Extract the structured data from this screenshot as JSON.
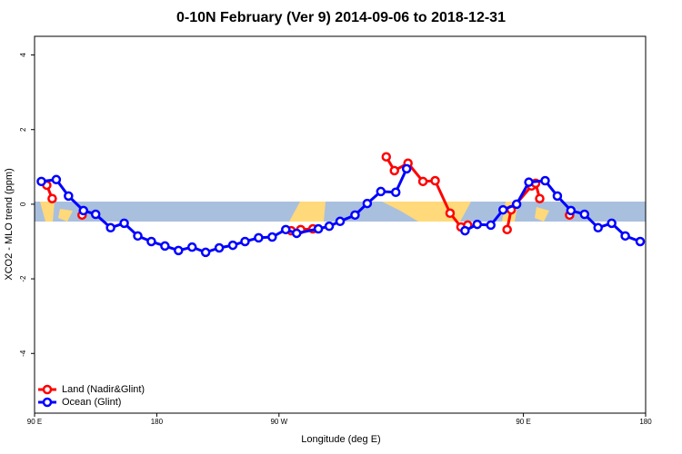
{
  "chart_data": {
    "type": "line",
    "title": "0-10N February (Ver 9)   2014-09-06 to 2018-12-31",
    "x_label": "Longitude (deg E)",
    "y_label": "XCO2 - MLO trend (ppm)",
    "xlim": [
      90,
      540
    ],
    "ylim": [
      -5.6,
      4.5
    ],
    "xticks": [
      {
        "value": 90,
        "label": "90 E"
      },
      {
        "value": 180,
        "label": "180"
      },
      {
        "value": 270,
        "label": "90 W"
      },
      {
        "value": 450,
        "label": "90 E"
      },
      {
        "value": 540,
        "label": "180"
      }
    ],
    "yticks": [
      -4,
      -2,
      0,
      2,
      4
    ],
    "legend": "bottom-left",
    "series": [
      {
        "name": "Land (Nadir&Glint)",
        "color": "#ff0000",
        "x": [
          99,
          103,
          null,
          125,
          null,
          279,
          286,
          295,
          null,
          349,
          355,
          365,
          376,
          385,
          396,
          404,
          409,
          null,
          438,
          441,
          456,
          459,
          462,
          null,
          484
        ],
        "values": [
          0.51,
          0.15,
          null,
          -0.29,
          null,
          -0.71,
          -0.68,
          -0.66,
          null,
          1.27,
          0.9,
          1.1,
          0.61,
          0.63,
          -0.24,
          -0.61,
          -0.56,
          null,
          -0.68,
          -0.15,
          0.49,
          0.56,
          0.15,
          null,
          -0.29
        ]
      },
      {
        "name": "Ocean (Glint)",
        "color": "#0000ff",
        "x": [
          95,
          106,
          115,
          126,
          135,
          146,
          156,
          166,
          176,
          186,
          196,
          206,
          216,
          226,
          236,
          245,
          255,
          265,
          275,
          283,
          299,
          307,
          315,
          326,
          335,
          345,
          356,
          364,
          null,
          407,
          416,
          426,
          435,
          445,
          454,
          466,
          475,
          485,
          495,
          505,
          515,
          525,
          536
        ],
        "values": [
          0.61,
          0.66,
          0.22,
          -0.17,
          -0.27,
          -0.63,
          -0.51,
          -0.85,
          -1.0,
          -1.12,
          -1.24,
          -1.15,
          -1.29,
          -1.17,
          -1.1,
          -1.0,
          -0.9,
          -0.88,
          -0.68,
          -0.78,
          -0.66,
          -0.59,
          -0.46,
          -0.29,
          0.02,
          0.34,
          0.32,
          0.95,
          null,
          -0.71,
          -0.54,
          -0.56,
          -0.15,
          0.0,
          0.59,
          0.63,
          0.22,
          -0.17,
          -0.27,
          -0.63,
          -0.51,
          -0.85,
          -1.0
        ]
      }
    ]
  }
}
